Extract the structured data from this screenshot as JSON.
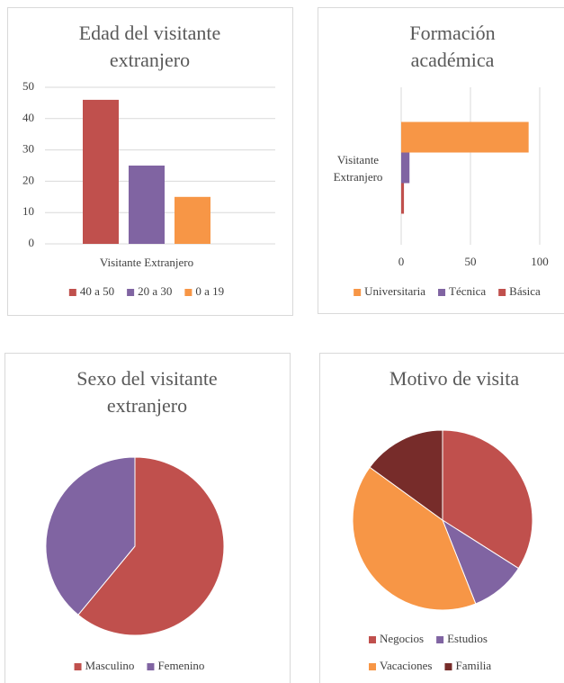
{
  "chart_data": [
    {
      "type": "bar",
      "title": "Edad del visitante extranjero",
      "categories": [
        "Visitante Extranjero"
      ],
      "series": [
        {
          "name": "40 a 50",
          "color": "#c0504d",
          "values": [
            46
          ]
        },
        {
          "name": "20 a 30",
          "color": "#8064a2",
          "values": [
            25
          ]
        },
        {
          "name": "0 a 19",
          "color": "#f79646",
          "values": [
            15
          ]
        }
      ],
      "ylim": [
        0,
        50
      ],
      "yticks": [
        0,
        10,
        20,
        30,
        40,
        50
      ],
      "grid": true,
      "legend": "bottom"
    },
    {
      "type": "barh",
      "title": "Formación académica",
      "categories": [
        "Visitante Extranjero"
      ],
      "series": [
        {
          "name": "Universitaria",
          "color": "#f79646",
          "values": [
            92
          ]
        },
        {
          "name": "Técnica",
          "color": "#8064a2",
          "values": [
            6
          ]
        },
        {
          "name": "Básica",
          "color": "#c0504d",
          "values": [
            2
          ]
        }
      ],
      "xlim": [
        0,
        100
      ],
      "xticks": [
        0,
        50,
        100
      ],
      "grid": true,
      "legend": "bottom"
    },
    {
      "type": "pie",
      "title": "Sexo del visitante extranjero",
      "categories": [
        "Masculino",
        "Femenino"
      ],
      "values": [
        61,
        39
      ],
      "colors": [
        "#c0504d",
        "#8064a2"
      ],
      "legend": "bottom"
    },
    {
      "type": "pie",
      "title": "Motivo de visita",
      "categories": [
        "Negocios",
        "Estudios",
        "Vacaciones",
        "Familia"
      ],
      "values": [
        34,
        10,
        41,
        15
      ],
      "colors": [
        "#c0504d",
        "#8064a2",
        "#f79646",
        "#772c2a"
      ],
      "legend": "bottom"
    }
  ]
}
